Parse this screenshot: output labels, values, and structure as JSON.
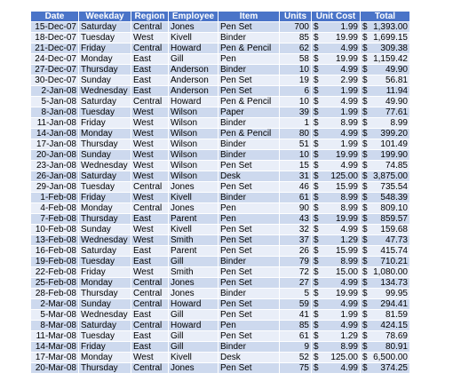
{
  "table": {
    "headers": [
      "Date",
      "Weekday",
      "Region",
      "Employee",
      "Item",
      "Units",
      "Unit Cost",
      "Total"
    ],
    "currency_symbol": "$",
    "rows": [
      [
        "15-Dec-07",
        "Saturday",
        "Central",
        "Jones",
        "Pen Set",
        "700",
        "1.99",
        "1,393.00"
      ],
      [
        "18-Dec-07",
        "Tuesday",
        "West",
        "Kivell",
        "Binder",
        "85",
        "19.99",
        "1,699.15"
      ],
      [
        "21-Dec-07",
        "Friday",
        "Central",
        "Howard",
        "Pen & Pencil",
        "62",
        "4.99",
        "309.38"
      ],
      [
        "24-Dec-07",
        "Monday",
        "East",
        "Gill",
        "Pen",
        "58",
        "19.99",
        "1,159.42"
      ],
      [
        "27-Dec-07",
        "Thursday",
        "East",
        "Anderson",
        "Binder",
        "10",
        "4.99",
        "49.90"
      ],
      [
        "30-Dec-07",
        "Sunday",
        "East",
        "Anderson",
        "Pen Set",
        "19",
        "2.99",
        "56.81"
      ],
      [
        "2-Jan-08",
        "Wednesday",
        "East",
        "Anderson",
        "Pen Set",
        "6",
        "1.99",
        "11.94"
      ],
      [
        "5-Jan-08",
        "Saturday",
        "Central",
        "Howard",
        "Pen & Pencil",
        "10",
        "4.99",
        "49.90"
      ],
      [
        "8-Jan-08",
        "Tuesday",
        "West",
        "Wilson",
        "Paper",
        "39",
        "1.99",
        "77.61"
      ],
      [
        "11-Jan-08",
        "Friday",
        "West",
        "Wilson",
        "Binder",
        "1",
        "8.99",
        "8.99"
      ],
      [
        "14-Jan-08",
        "Monday",
        "West",
        "Wilson",
        "Pen & Pencil",
        "80",
        "4.99",
        "399.20"
      ],
      [
        "17-Jan-08",
        "Thursday",
        "West",
        "Wilson",
        "Binder",
        "51",
        "1.99",
        "101.49"
      ],
      [
        "20-Jan-08",
        "Sunday",
        "West",
        "Wilson",
        "Binder",
        "10",
        "19.99",
        "199.90"
      ],
      [
        "23-Jan-08",
        "Wednesday",
        "West",
        "Wilson",
        "Pen Set",
        "15",
        "4.99",
        "74.85"
      ],
      [
        "26-Jan-08",
        "Saturday",
        "West",
        "Wilson",
        "Desk",
        "31",
        "125.00",
        "3,875.00"
      ],
      [
        "29-Jan-08",
        "Tuesday",
        "Central",
        "Jones",
        "Pen Set",
        "46",
        "15.99",
        "735.54"
      ],
      [
        "1-Feb-08",
        "Friday",
        "West",
        "Kivell",
        "Binder",
        "61",
        "8.99",
        "548.39"
      ],
      [
        "4-Feb-08",
        "Monday",
        "Central",
        "Jones",
        "Pen",
        "90",
        "8.99",
        "809.10"
      ],
      [
        "7-Feb-08",
        "Thursday",
        "East",
        "Parent",
        "Pen",
        "43",
        "19.99",
        "859.57"
      ],
      [
        "10-Feb-08",
        "Sunday",
        "West",
        "Kivell",
        "Pen Set",
        "32",
        "4.99",
        "159.68"
      ],
      [
        "13-Feb-08",
        "Wednesday",
        "West",
        "Smith",
        "Pen Set",
        "37",
        "1.29",
        "47.73"
      ],
      [
        "16-Feb-08",
        "Saturday",
        "East",
        "Parent",
        "Pen Set",
        "26",
        "15.99",
        "415.74"
      ],
      [
        "19-Feb-08",
        "Tuesday",
        "East",
        "Gill",
        "Binder",
        "79",
        "8.99",
        "710.21"
      ],
      [
        "22-Feb-08",
        "Friday",
        "West",
        "Smith",
        "Pen Set",
        "72",
        "15.00",
        "1,080.00"
      ],
      [
        "25-Feb-08",
        "Monday",
        "Central",
        "Jones",
        "Pen Set",
        "27",
        "4.99",
        "134.73"
      ],
      [
        "28-Feb-08",
        "Thursday",
        "Central",
        "Jones",
        "Binder",
        "5",
        "19.99",
        "99.95"
      ],
      [
        "2-Mar-08",
        "Sunday",
        "Central",
        "Howard",
        "Pen Set",
        "59",
        "4.99",
        "294.41"
      ],
      [
        "5-Mar-08",
        "Wednesday",
        "East",
        "Gill",
        "Pen Set",
        "41",
        "1.99",
        "81.59"
      ],
      [
        "8-Mar-08",
        "Saturday",
        "Central",
        "Howard",
        "Pen",
        "85",
        "4.99",
        "424.15"
      ],
      [
        "11-Mar-08",
        "Tuesday",
        "East",
        "Gill",
        "Pen Set",
        "61",
        "1.29",
        "78.69"
      ],
      [
        "14-Mar-08",
        "Friday",
        "East",
        "Gill",
        "Binder",
        "9",
        "8.99",
        "80.91"
      ],
      [
        "17-Mar-08",
        "Monday",
        "West",
        "Kivell",
        "Desk",
        "52",
        "125.00",
        "6,500.00"
      ],
      [
        "20-Mar-08",
        "Thursday",
        "Central",
        "Jones",
        "Pen Set",
        "75",
        "4.99",
        "374.25"
      ]
    ]
  }
}
